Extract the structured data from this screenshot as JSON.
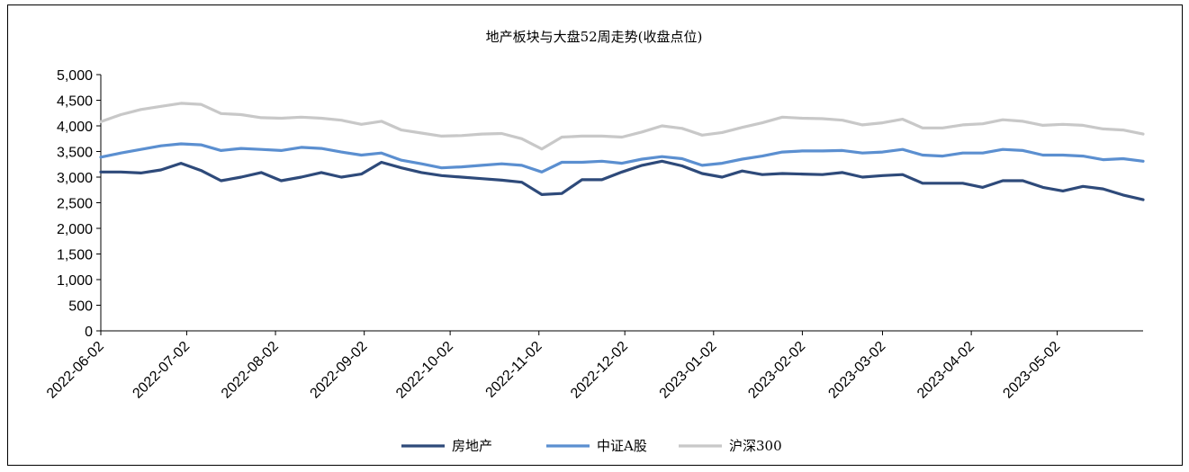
{
  "chart_data": {
    "type": "line",
    "title": "地产板块与大盘52周走势(收盘点位)",
    "xlabel": "",
    "ylabel": "",
    "ylim": [
      0,
      5000
    ],
    "yticks": [
      "0",
      "500",
      "1,000",
      "1,500",
      "2,000",
      "2,500",
      "3,000",
      "3,500",
      "4,000",
      "4,500",
      "5,000"
    ],
    "xticks": [
      "2022-06-02",
      "2022-07-02",
      "2022-08-02",
      "2022-09-02",
      "2022-10-02",
      "2022-11-02",
      "2022-12-02",
      "2023-01-02",
      "2023-02-02",
      "2023-03-02",
      "2023-04-02",
      "2023-05-02"
    ],
    "legend_position": "bottom",
    "grid": false,
    "series": [
      {
        "name": "房地产",
        "color": "#2E4A7A",
        "values": [
          [
            "2022-06-02",
            3100
          ],
          [
            "2022-06-09",
            3100
          ],
          [
            "2022-06-16",
            3080
          ],
          [
            "2022-06-23",
            3140
          ],
          [
            "2022-06-30",
            3270
          ],
          [
            "2022-07-07",
            3130
          ],
          [
            "2022-07-14",
            2930
          ],
          [
            "2022-07-21",
            3000
          ],
          [
            "2022-07-28",
            3090
          ],
          [
            "2022-08-04",
            2930
          ],
          [
            "2022-08-11",
            3000
          ],
          [
            "2022-08-18",
            3090
          ],
          [
            "2022-08-25",
            3000
          ],
          [
            "2022-09-01",
            3060
          ],
          [
            "2022-09-08",
            3290
          ],
          [
            "2022-09-15",
            3180
          ],
          [
            "2022-09-22",
            3090
          ],
          [
            "2022-09-29",
            3030
          ],
          [
            "2022-10-06",
            3000
          ],
          [
            "2022-10-13",
            2970
          ],
          [
            "2022-10-20",
            2940
          ],
          [
            "2022-10-27",
            2900
          ],
          [
            "2022-11-03",
            2660
          ],
          [
            "2022-11-10",
            2680
          ],
          [
            "2022-11-17",
            2950
          ],
          [
            "2022-11-24",
            2950
          ],
          [
            "2022-12-01",
            3100
          ],
          [
            "2022-12-08",
            3230
          ],
          [
            "2022-12-15",
            3310
          ],
          [
            "2022-12-22",
            3220
          ],
          [
            "2022-12-29",
            3070
          ],
          [
            "2023-01-05",
            3000
          ],
          [
            "2023-01-12",
            3120
          ],
          [
            "2023-01-19",
            3050
          ],
          [
            "2023-01-26",
            3070
          ],
          [
            "2023-02-02",
            3060
          ],
          [
            "2023-02-09",
            3050
          ],
          [
            "2023-02-16",
            3090
          ],
          [
            "2023-02-23",
            3000
          ],
          [
            "2023-03-02",
            3030
          ],
          [
            "2023-03-09",
            3050
          ],
          [
            "2023-03-16",
            2880
          ],
          [
            "2023-03-23",
            2880
          ],
          [
            "2023-03-30",
            2880
          ],
          [
            "2023-04-06",
            2800
          ],
          [
            "2023-04-13",
            2930
          ],
          [
            "2023-04-20",
            2930
          ],
          [
            "2023-04-27",
            2800
          ],
          [
            "2023-05-04",
            2730
          ],
          [
            "2023-05-11",
            2820
          ],
          [
            "2023-05-18",
            2770
          ],
          [
            "2023-05-25",
            2650
          ],
          [
            "2023-06-01",
            2560
          ]
        ]
      },
      {
        "name": "中证A股",
        "color": "#5B8FD0",
        "values": [
          [
            "2022-06-02",
            3390
          ],
          [
            "2022-06-09",
            3470
          ],
          [
            "2022-06-16",
            3540
          ],
          [
            "2022-06-23",
            3610
          ],
          [
            "2022-06-30",
            3650
          ],
          [
            "2022-07-07",
            3630
          ],
          [
            "2022-07-14",
            3520
          ],
          [
            "2022-07-21",
            3560
          ],
          [
            "2022-07-28",
            3540
          ],
          [
            "2022-08-04",
            3520
          ],
          [
            "2022-08-11",
            3580
          ],
          [
            "2022-08-18",
            3560
          ],
          [
            "2022-08-25",
            3490
          ],
          [
            "2022-09-01",
            3430
          ],
          [
            "2022-09-08",
            3470
          ],
          [
            "2022-09-15",
            3330
          ],
          [
            "2022-09-22",
            3260
          ],
          [
            "2022-09-29",
            3180
          ],
          [
            "2022-10-06",
            3200
          ],
          [
            "2022-10-13",
            3230
          ],
          [
            "2022-10-20",
            3260
          ],
          [
            "2022-10-27",
            3230
          ],
          [
            "2022-11-03",
            3100
          ],
          [
            "2022-11-10",
            3290
          ],
          [
            "2022-11-17",
            3290
          ],
          [
            "2022-11-24",
            3310
          ],
          [
            "2022-12-01",
            3270
          ],
          [
            "2022-12-08",
            3350
          ],
          [
            "2022-12-15",
            3400
          ],
          [
            "2022-12-22",
            3360
          ],
          [
            "2022-12-29",
            3230
          ],
          [
            "2023-01-05",
            3270
          ],
          [
            "2023-01-12",
            3350
          ],
          [
            "2023-01-19",
            3410
          ],
          [
            "2023-01-26",
            3490
          ],
          [
            "2023-02-02",
            3510
          ],
          [
            "2023-02-09",
            3510
          ],
          [
            "2023-02-16",
            3520
          ],
          [
            "2023-02-23",
            3470
          ],
          [
            "2023-03-02",
            3490
          ],
          [
            "2023-03-09",
            3540
          ],
          [
            "2023-03-16",
            3430
          ],
          [
            "2023-03-23",
            3410
          ],
          [
            "2023-03-30",
            3470
          ],
          [
            "2023-04-06",
            3470
          ],
          [
            "2023-04-13",
            3540
          ],
          [
            "2023-04-20",
            3520
          ],
          [
            "2023-04-27",
            3430
          ],
          [
            "2023-05-04",
            3430
          ],
          [
            "2023-05-11",
            3410
          ],
          [
            "2023-05-18",
            3340
          ],
          [
            "2023-05-25",
            3360
          ],
          [
            "2023-06-01",
            3310
          ]
        ]
      },
      {
        "name": "沪深300",
        "color": "#C8C8C8",
        "values": [
          [
            "2022-06-02",
            4080
          ],
          [
            "2022-06-09",
            4220
          ],
          [
            "2022-06-16",
            4320
          ],
          [
            "2022-06-23",
            4380
          ],
          [
            "2022-06-30",
            4440
          ],
          [
            "2022-07-07",
            4420
          ],
          [
            "2022-07-14",
            4240
          ],
          [
            "2022-07-21",
            4220
          ],
          [
            "2022-07-28",
            4160
          ],
          [
            "2022-08-04",
            4150
          ],
          [
            "2022-08-11",
            4170
          ],
          [
            "2022-08-18",
            4150
          ],
          [
            "2022-08-25",
            4110
          ],
          [
            "2022-09-01",
            4030
          ],
          [
            "2022-09-08",
            4090
          ],
          [
            "2022-09-15",
            3920
          ],
          [
            "2022-09-22",
            3860
          ],
          [
            "2022-09-29",
            3800
          ],
          [
            "2022-10-06",
            3810
          ],
          [
            "2022-10-13",
            3840
          ],
          [
            "2022-10-20",
            3850
          ],
          [
            "2022-10-27",
            3750
          ],
          [
            "2022-11-03",
            3550
          ],
          [
            "2022-11-10",
            3780
          ],
          [
            "2022-11-17",
            3800
          ],
          [
            "2022-11-24",
            3800
          ],
          [
            "2022-12-01",
            3780
          ],
          [
            "2022-12-08",
            3880
          ],
          [
            "2022-12-15",
            4000
          ],
          [
            "2022-12-22",
            3950
          ],
          [
            "2022-12-29",
            3820
          ],
          [
            "2023-01-05",
            3870
          ],
          [
            "2023-01-12",
            3970
          ],
          [
            "2023-01-19",
            4060
          ],
          [
            "2023-01-26",
            4170
          ],
          [
            "2023-02-02",
            4150
          ],
          [
            "2023-02-09",
            4140
          ],
          [
            "2023-02-16",
            4110
          ],
          [
            "2023-02-23",
            4020
          ],
          [
            "2023-03-02",
            4060
          ],
          [
            "2023-03-09",
            4130
          ],
          [
            "2023-03-16",
            3960
          ],
          [
            "2023-03-23",
            3960
          ],
          [
            "2023-03-30",
            4020
          ],
          [
            "2023-04-06",
            4040
          ],
          [
            "2023-04-13",
            4120
          ],
          [
            "2023-04-20",
            4090
          ],
          [
            "2023-04-27",
            4010
          ],
          [
            "2023-05-04",
            4030
          ],
          [
            "2023-05-11",
            4010
          ],
          [
            "2023-05-18",
            3940
          ],
          [
            "2023-05-25",
            3920
          ],
          [
            "2023-06-01",
            3840
          ]
        ]
      }
    ]
  }
}
